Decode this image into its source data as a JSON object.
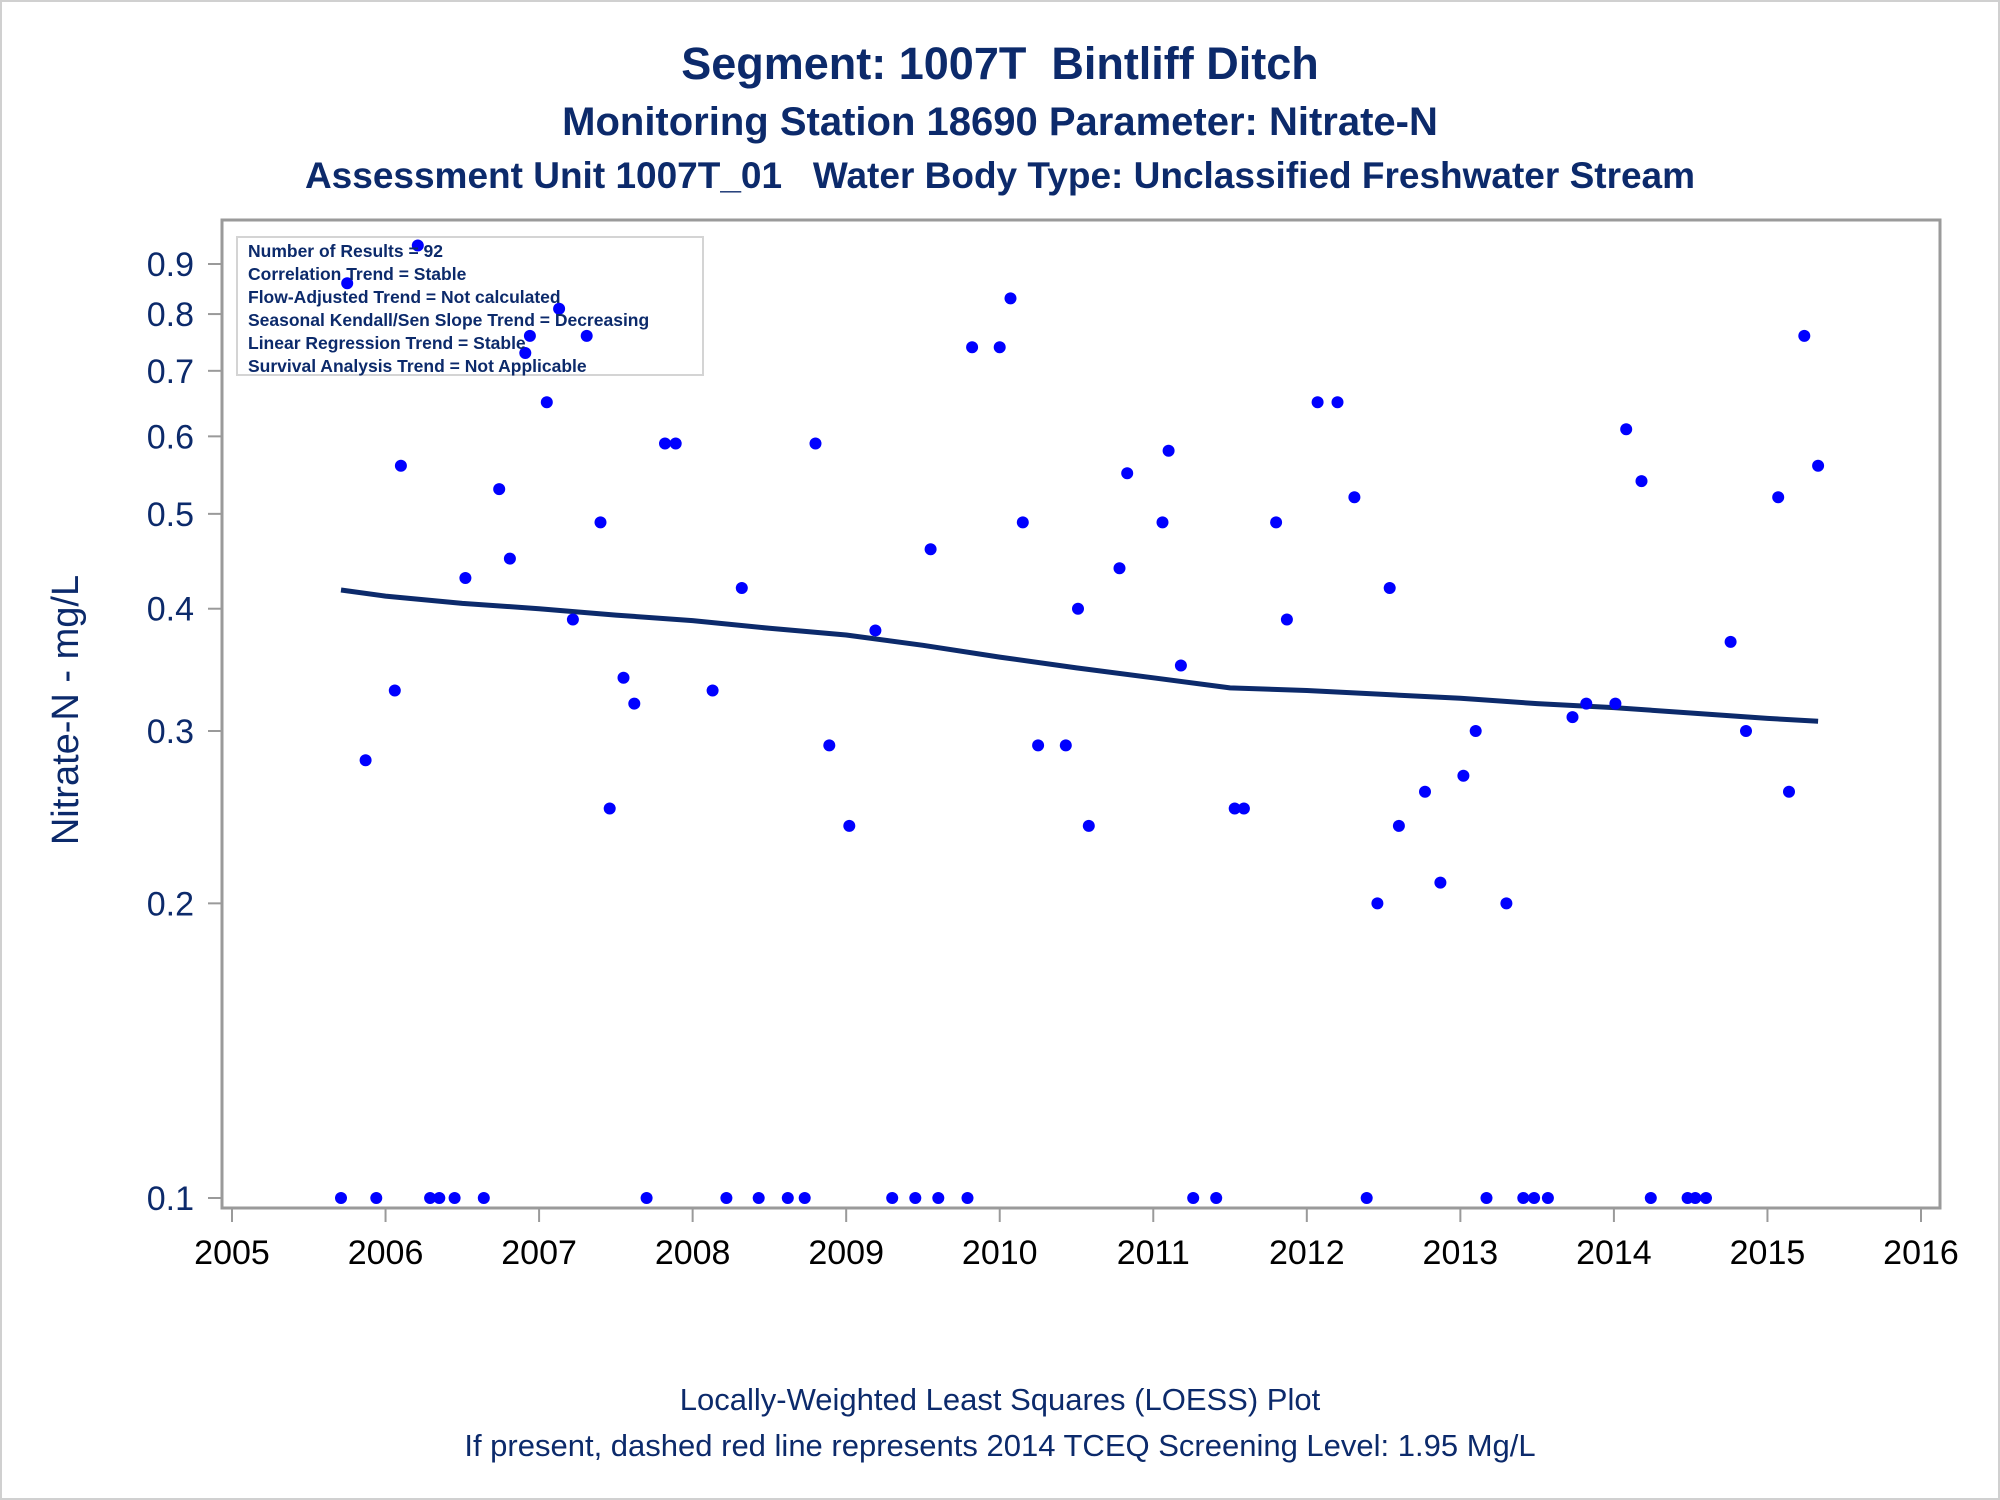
{
  "title": "Segment: 1007T  Bintliff Ditch",
  "subtitle": "Monitoring Station 18690 Parameter: Nitrate-N",
  "subtitle2": "Assessment Unit 1007T_01   Water Body Type: Unclassified Freshwater Stream",
  "footnotes": [
    "Locally-Weighted Least Squares (LOESS) Plot",
    "If present, dashed red line represents 2014 TCEQ Screening Level: 1.95 Mg/L"
  ],
  "stats": [
    "Number of Results = 92",
    "Correlation Trend = Stable",
    "Flow-Adjusted Trend = Not calculated",
    "Seasonal Kendall/Sen Slope Trend = Decreasing",
    "Linear Regression Trend = Stable",
    "Survival Analysis Trend = Not Applicable"
  ],
  "colors": {
    "text": "#0c2a6b",
    "points": "#0000ff",
    "loess": "#0c2a6b",
    "axis": "#9a9a9a"
  },
  "chart_data": {
    "type": "scatter",
    "ylabel": "Nitrate-N - mg/L",
    "xlabel": "",
    "y_scale": "log",
    "xlim": [
      2005,
      2016
    ],
    "ylim": [
      0.093,
      1.0
    ],
    "x_ticks": [
      "2005",
      "2006",
      "2007",
      "2008",
      "2009",
      "2010",
      "2011",
      "2012",
      "2013",
      "2014",
      "2015",
      "2016"
    ],
    "y_ticks": [
      "0.1",
      "0.2",
      "0.3",
      "0.4",
      "0.5",
      "0.6",
      "0.7",
      "0.8",
      "0.9"
    ],
    "grid": false,
    "series": [
      {
        "type": "scatter",
        "points": [
          [
            2005.71,
            0.1
          ],
          [
            2005.75,
            0.86
          ],
          [
            2005.87,
            0.28
          ],
          [
            2005.94,
            0.1
          ],
          [
            2006.06,
            0.33
          ],
          [
            2006.1,
            0.56
          ],
          [
            2006.21,
            0.94
          ],
          [
            2006.29,
            0.1
          ],
          [
            2006.35,
            0.1
          ],
          [
            2006.45,
            0.1
          ],
          [
            2006.52,
            0.43
          ],
          [
            2006.64,
            0.1
          ],
          [
            2006.74,
            0.53
          ],
          [
            2006.81,
            0.45
          ],
          [
            2006.91,
            0.73
          ],
          [
            2006.94,
            0.76
          ],
          [
            2007.05,
            0.65
          ],
          [
            2007.13,
            0.81
          ],
          [
            2007.22,
            0.39
          ],
          [
            2007.31,
            0.76
          ],
          [
            2007.4,
            0.49
          ],
          [
            2007.46,
            0.25
          ],
          [
            2007.55,
            0.34
          ],
          [
            2007.62,
            0.32
          ],
          [
            2007.7,
            0.1
          ],
          [
            2007.82,
            0.59
          ],
          [
            2007.89,
            0.59
          ],
          [
            2008.13,
            0.33
          ],
          [
            2008.22,
            0.1
          ],
          [
            2008.32,
            0.42
          ],
          [
            2008.43,
            0.1
          ],
          [
            2008.62,
            0.1
          ],
          [
            2008.73,
            0.1
          ],
          [
            2008.8,
            0.59
          ],
          [
            2008.89,
            0.29
          ],
          [
            2009.02,
            0.24
          ],
          [
            2009.19,
            0.38
          ],
          [
            2009.3,
            0.1
          ],
          [
            2009.45,
            0.1
          ],
          [
            2009.55,
            0.46
          ],
          [
            2009.6,
            0.1
          ],
          [
            2009.79,
            0.1
          ],
          [
            2009.82,
            0.74
          ],
          [
            2010.0,
            0.74
          ],
          [
            2010.07,
            0.83
          ],
          [
            2010.15,
            0.49
          ],
          [
            2010.25,
            0.29
          ],
          [
            2010.43,
            0.29
          ],
          [
            2010.51,
            0.4
          ],
          [
            2010.58,
            0.24
          ],
          [
            2010.78,
            0.44
          ],
          [
            2010.83,
            0.55
          ],
          [
            2011.06,
            0.49
          ],
          [
            2011.1,
            0.58
          ],
          [
            2011.18,
            0.35
          ],
          [
            2011.26,
            0.1
          ],
          [
            2011.41,
            0.1
          ],
          [
            2011.53,
            0.25
          ],
          [
            2011.59,
            0.25
          ],
          [
            2011.8,
            0.49
          ],
          [
            2011.87,
            0.39
          ],
          [
            2012.07,
            0.65
          ],
          [
            2012.2,
            0.65
          ],
          [
            2012.31,
            0.52
          ],
          [
            2012.39,
            0.1
          ],
          [
            2012.46,
            0.2
          ],
          [
            2012.54,
            0.42
          ],
          [
            2012.6,
            0.24
          ],
          [
            2012.77,
            0.26
          ],
          [
            2012.87,
            0.21
          ],
          [
            2013.02,
            0.27
          ],
          [
            2013.1,
            0.3
          ],
          [
            2013.17,
            0.1
          ],
          [
            2013.3,
            0.2
          ],
          [
            2013.41,
            0.1
          ],
          [
            2013.48,
            0.1
          ],
          [
            2013.57,
            0.1
          ],
          [
            2013.73,
            0.31
          ],
          [
            2013.82,
            0.32
          ],
          [
            2014.01,
            0.32
          ],
          [
            2014.08,
            0.61
          ],
          [
            2014.18,
            0.54
          ],
          [
            2014.24,
            0.1
          ],
          [
            2014.48,
            0.1
          ],
          [
            2014.53,
            0.1
          ],
          [
            2014.6,
            0.1
          ],
          [
            2014.76,
            0.37
          ],
          [
            2014.86,
            0.3
          ],
          [
            2015.07,
            0.52
          ],
          [
            2015.14,
            0.26
          ],
          [
            2015.24,
            0.76
          ],
          [
            2015.33,
            0.56
          ]
        ]
      },
      {
        "type": "line",
        "points": [
          [
            2005.71,
            0.418
          ],
          [
            2006.0,
            0.412
          ],
          [
            2006.5,
            0.405
          ],
          [
            2007.0,
            0.4
          ],
          [
            2007.5,
            0.394
          ],
          [
            2008.0,
            0.389
          ],
          [
            2008.5,
            0.382
          ],
          [
            2009.0,
            0.376
          ],
          [
            2009.5,
            0.367
          ],
          [
            2010.0,
            0.357
          ],
          [
            2010.5,
            0.348
          ],
          [
            2011.0,
            0.34
          ],
          [
            2011.5,
            0.332
          ],
          [
            2012.0,
            0.33
          ],
          [
            2012.5,
            0.327
          ],
          [
            2013.0,
            0.324
          ],
          [
            2013.5,
            0.32
          ],
          [
            2014.0,
            0.317
          ],
          [
            2014.5,
            0.313
          ],
          [
            2015.0,
            0.309
          ],
          [
            2015.33,
            0.307
          ]
        ]
      }
    ]
  }
}
